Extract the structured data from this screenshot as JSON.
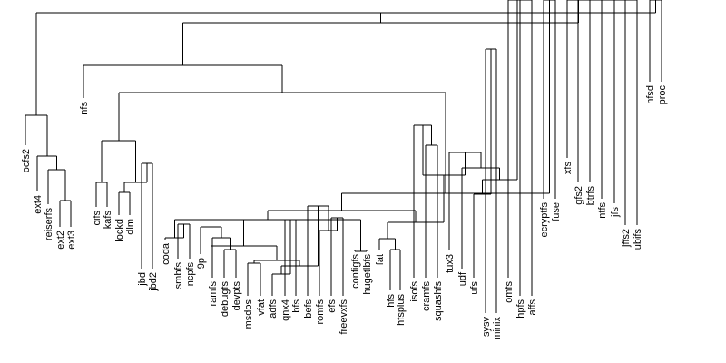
{
  "diagram": {
    "type": "dendrogram",
    "orientation": "top-down",
    "line_color": "#000000",
    "background": "#ffffff",
    "leaves": [
      {
        "id": "ocfs2",
        "label": "ocfs2"
      },
      {
        "id": "ext4",
        "label": "ext4"
      },
      {
        "id": "reiserfs",
        "label": "reiserfs"
      },
      {
        "id": "ext2",
        "label": "ext2"
      },
      {
        "id": "ext3",
        "label": "ext3"
      },
      {
        "id": "nfs",
        "label": "nfs"
      },
      {
        "id": "cifs",
        "label": "cifs"
      },
      {
        "id": "kafs",
        "label": "kafs"
      },
      {
        "id": "lockd",
        "label": "lockd"
      },
      {
        "id": "dlm",
        "label": "dlm"
      },
      {
        "id": "jbd",
        "label": "jbd"
      },
      {
        "id": "jbd2",
        "label": "jbd2"
      },
      {
        "id": "coda",
        "label": "coda"
      },
      {
        "id": "smbfs",
        "label": "smbfs"
      },
      {
        "id": "ncpfs",
        "label": "ncpfs"
      },
      {
        "id": "9p",
        "label": "9p"
      },
      {
        "id": "ramfs",
        "label": "ramfs"
      },
      {
        "id": "debugfs",
        "label": "debugfs"
      },
      {
        "id": "devpts",
        "label": "devpts"
      },
      {
        "id": "msdos",
        "label": "msdos"
      },
      {
        "id": "vfat",
        "label": "vfat"
      },
      {
        "id": "adfs",
        "label": "adfs"
      },
      {
        "id": "qnx4",
        "label": "qnx4"
      },
      {
        "id": "bfs",
        "label": "bfs"
      },
      {
        "id": "befs",
        "label": "befs"
      },
      {
        "id": "romfs",
        "label": "romfs"
      },
      {
        "id": "efs",
        "label": "efs"
      },
      {
        "id": "freevxfs",
        "label": "freevxfs"
      },
      {
        "id": "configfs",
        "label": "configfs"
      },
      {
        "id": "hugetlbfs",
        "label": "hugetlbfs"
      },
      {
        "id": "fat",
        "label": "fat"
      },
      {
        "id": "hfs",
        "label": "hfs"
      },
      {
        "id": "hfsplus",
        "label": "hfsplus"
      },
      {
        "id": "isofs",
        "label": "isofs"
      },
      {
        "id": "cramfs",
        "label": "cramfs"
      },
      {
        "id": "squashfs",
        "label": "squashfs"
      },
      {
        "id": "tux3",
        "label": "tux3"
      },
      {
        "id": "udf",
        "label": "udf"
      },
      {
        "id": "ufs",
        "label": "ufs"
      },
      {
        "id": "sysv",
        "label": "sysv"
      },
      {
        "id": "minix",
        "label": "minix"
      },
      {
        "id": "omfs",
        "label": "omfs"
      },
      {
        "id": "hpfs",
        "label": "hpfs"
      },
      {
        "id": "affs",
        "label": "affs"
      },
      {
        "id": "ecryptfs",
        "label": "ecryptfs"
      },
      {
        "id": "fuse",
        "label": "fuse"
      },
      {
        "id": "xfs",
        "label": "xfs"
      },
      {
        "id": "gfs2",
        "label": "gfs2"
      },
      {
        "id": "btrfs",
        "label": "btrfs"
      },
      {
        "id": "ntfs",
        "label": "ntfs"
      },
      {
        "id": "jfs",
        "label": "jfs"
      },
      {
        "id": "jffs2",
        "label": "jffs2"
      },
      {
        "id": "ubifs",
        "label": "ubifs"
      },
      {
        "id": "nfsd",
        "label": "nfsd"
      },
      {
        "id": "proc",
        "label": "proc"
      }
    ],
    "tree": {
      "c": [
        {
          "c": [
            {
              "leaf": "ocfs2"
            },
            {
              "c": [
                {
                  "leaf": "ext4"
                },
                {
                  "c": [
                    {
                      "leaf": "reiserfs"
                    },
                    {
                      "c": [
                        {
                          "leaf": "ext2"
                        },
                        {
                          "leaf": "ext3"
                        }
                      ]
                    }
                  ]
                }
              ]
            }
          ]
        },
        {
          "c": [
            {
              "c": [
                {
                  "leaf": "nfs"
                },
                {
                  "c": [
                    {
                      "c": [
                        {
                          "c": [
                            {
                              "leaf": "cifs"
                            },
                            {
                              "leaf": "kafs"
                            }
                          ]
                        },
                        {
                          "c": [
                            {
                              "c": [
                                {
                                  "leaf": "lockd"
                                },
                                {
                                  "leaf": "dlm"
                                }
                              ]
                            },
                            {
                              "c": [
                                {
                                  "leaf": "jbd"
                                },
                                {
                                  "leaf": "jbd2"
                                }
                              ]
                            }
                          ]
                        }
                      ]
                    },
                    {
                      "c": [
                        {
                          "c": [
                            {
                              "c": [
                                {
                                  "c": [
                                    {
                                      "leaf": "coda"
                                    },
                                    {
                                      "c": [
                                        {
                                          "leaf": "smbfs"
                                        },
                                        {
                                          "leaf": "ncpfs"
                                        }
                                      ]
                                    }
                                  ]
                                },
                                {
                                  "c": [
                                    {
                                      "c": [
                                        {
                                          "leaf": "9p"
                                        },
                                        {
                                          "c": [
                                            {
                                              "leaf": "ramfs"
                                            },
                                            {
                                              "c": [
                                                {
                                                  "leaf": "debugfs"
                                                },
                                                {
                                                  "leaf": "devpts"
                                                }
                                              ]
                                            }
                                          ]
                                        }
                                      ]
                                    },
                                    {
                                      "c": [
                                        {
                                          "c": [
                                            {
                                              "leaf": "msdos"
                                            },
                                            {
                                              "leaf": "vfat"
                                            }
                                          ]
                                        },
                                        {
                                          "c": [
                                            {
                                              "c": [
                                                {
                                                  "leaf": "adfs"
                                                },
                                                {
                                                  "c": [
                                                    {
                                                      "leaf": "qnx4"
                                                    },
                                                    {
                                                      "leaf": "bfs"
                                                    }
                                                  ]
                                                }
                                              ]
                                            },
                                            {
                                              "c": [
                                                {
                                                  "leaf": "befs"
                                                },
                                                {
                                                  "c": [
                                                    {
                                                      "leaf": "romfs"
                                                    },
                                                    {
                                                      "c": [
                                                        {
                                                          "leaf": "efs"
                                                        },
                                                        {
                                                          "leaf": "freevxfs"
                                                        }
                                                      ]
                                                    }
                                                  ]
                                                }
                                              ]
                                            }
                                          ]
                                        }
                                      ]
                                    }
                                  ]
                                },
                                {
                                  "c": [
                                    {
                                      "leaf": "configfs"
                                    },
                                    {
                                      "leaf": "hugetlbfs"
                                    }
                                  ]
                                }
                              ]
                            },
                            {
                              "c": [
                                {
                                  "c": [
                                    {
                                      "leaf": "fat"
                                    },
                                    {
                                      "c": [
                                        {
                                          "leaf": "hfs"
                                        },
                                        {
                                          "leaf": "hfsplus"
                                        }
                                      ]
                                    }
                                  ]
                                },
                                {
                                  "c": [
                                    {
                                      "c": [
                                        {
                                          "leaf": "isofs"
                                        },
                                        {
                                          "c": [
                                            {
                                              "leaf": "cramfs"
                                            },
                                            {
                                              "leaf": "squashfs"
                                            }
                                          ]
                                        }
                                      ]
                                    },
                                    {
                                      "c": [
                                        {
                                          "leaf": "tux3"
                                        },
                                        {
                                          "c": [
                                            {
                                              "leaf": "udf"
                                            },
                                            {
                                              "c": [
                                                {
                                                  "c": [
                                                    {
                                                      "leaf": "ufs"
                                                    },
                                                    {
                                                      "c": [
                                                        {
                                                          "leaf": "sysv"
                                                        },
                                                        {
                                                          "leaf": "minix"
                                                        }
                                                      ]
                                                    }
                                                  ]
                                                },
                                                {
                                                  "c": [
                                                    {
                                                      "leaf": "omfs"
                                                    },
                                                    {
                                                      "c": [
                                                        {
                                                          "leaf": "hpfs"
                                                        },
                                                        {
                                                          "leaf": "affs"
                                                        }
                                                      ]
                                                    }
                                                  ]
                                                }
                                              ]
                                            }
                                          ]
                                        }
                                      ]
                                    }
                                  ]
                                }
                              ]
                            }
                          ]
                        },
                        {
                          "c": [
                            {
                              "leaf": "ecryptfs"
                            },
                            {
                              "leaf": "fuse"
                            }
                          ]
                        }
                      ]
                    }
                  ]
                }
              ]
            },
            {
              "c": [
                {
                  "leaf": "xfs"
                },
                {
                  "c": [
                    {
                      "leaf": "gfs2"
                    },
                    {
                      "c": [
                        {
                          "leaf": "btrfs"
                        },
                        {
                          "c": [
                            {
                              "leaf": "ntfs"
                            },
                            {
                              "c": [
                                {
                                  "leaf": "jfs"
                                },
                                {
                                  "c": [
                                    {
                                      "leaf": "jffs2"
                                    },
                                    {
                                      "leaf": "ubifs"
                                    }
                                  ]
                                }
                              ]
                            }
                          ]
                        }
                      ]
                    }
                  ]
                }
              ]
            }
          ]
        },
        {
          "c": [
            {
              "leaf": "nfsd"
            },
            {
              "leaf": "proc"
            }
          ]
        }
      ]
    }
  }
}
